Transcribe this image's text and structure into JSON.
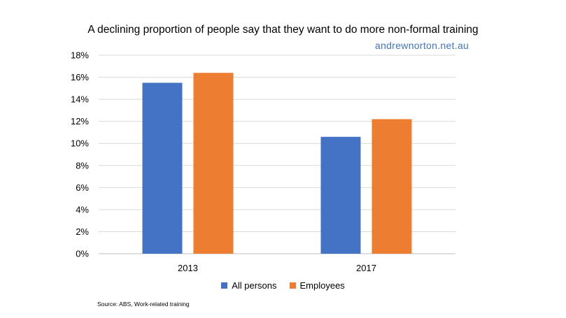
{
  "chart_data": {
    "type": "bar",
    "title": "A declining proportion of people say that they want to do more non-formal training",
    "watermark": "andrewnorton.net.au",
    "categories": [
      "2013",
      "2017"
    ],
    "series": [
      {
        "name": "All persons",
        "color": "#4472C4",
        "values": [
          15.5,
          10.6
        ]
      },
      {
        "name": "Employees",
        "color": "#ED7D31",
        "values": [
          16.4,
          12.2
        ]
      }
    ],
    "ylim": [
      0,
      18
    ],
    "y_ticks": [
      "0%",
      "2%",
      "4%",
      "6%",
      "8%",
      "10%",
      "12%",
      "14%",
      "16%",
      "18%"
    ],
    "y_tick_values": [
      0,
      2,
      4,
      6,
      8,
      10,
      12,
      14,
      16,
      18
    ],
    "grid": true,
    "legend_position": "bottom",
    "source": "Source: ABS, Work-related training"
  }
}
